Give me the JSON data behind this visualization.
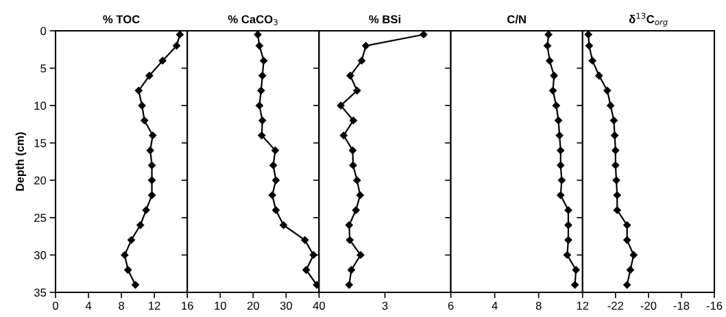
{
  "chart_data": [
    {
      "type": "line",
      "title": "% TOC",
      "ylabel": "Depth (cm)",
      "xlim": [
        0,
        16
      ],
      "xticks": [
        0,
        4,
        8,
        12,
        16
      ],
      "ylim": [
        35,
        0
      ],
      "yticks": [
        0,
        5,
        10,
        15,
        20,
        25,
        30,
        35
      ],
      "marker": "diamond",
      "line_style": "solid",
      "grid": false,
      "legend": false,
      "series": [
        {
          "color": "#000000",
          "x": [
            15.1,
            14.7,
            13.0,
            11.4,
            10.1,
            10.5,
            10.8,
            11.8,
            11.5,
            11.7,
            11.7,
            11.7,
            11.0,
            10.3,
            9.2,
            8.4,
            8.8,
            9.7
          ],
          "values": [
            0.5,
            2,
            4,
            6,
            8,
            10,
            12,
            14,
            16,
            18,
            20,
            22,
            24,
            26,
            28,
            30,
            32,
            34
          ]
        }
      ]
    },
    {
      "type": "line",
      "title": "% CaCO$_{3}$",
      "xlim": [
        0,
        40
      ],
      "xticks": [
        10,
        20,
        30,
        40
      ],
      "ylim": [
        35,
        0
      ],
      "yticks": [
        0,
        5,
        10,
        15,
        20,
        25,
        30,
        35
      ],
      "tick_labels": "x",
      "marker": "diamond",
      "line_style": "solid",
      "grid": false,
      "legend": false,
      "series": [
        {
          "color": "#000000",
          "x": [
            21.4,
            21.9,
            23.2,
            22.8,
            22.4,
            21.9,
            22.8,
            22.6,
            26.7,
            26.1,
            26.9,
            25.8,
            26.9,
            29.2,
            35.7,
            38.3,
            36.1,
            39.3
          ],
          "values": [
            0.5,
            2,
            4,
            6,
            8,
            10,
            12,
            14,
            16,
            18,
            20,
            22,
            24,
            26,
            28,
            30,
            32,
            34
          ]
        }
      ]
    },
    {
      "type": "line",
      "title": "% BSi",
      "xlim": [
        0,
        6
      ],
      "xticks": [
        3,
        6
      ],
      "ylim": [
        35,
        0
      ],
      "yticks": [
        0,
        5,
        10,
        15,
        20,
        25,
        30,
        35
      ],
      "tick_labels": "x",
      "marker": "diamond",
      "line_style": "solid",
      "grid": false,
      "legend": false,
      "series": [
        {
          "color": "#000000",
          "x": [
            4.76,
            2.13,
            1.94,
            1.42,
            1.73,
            0.99,
            1.56,
            1.12,
            1.53,
            1.55,
            1.73,
            1.87,
            1.68,
            1.37,
            1.4,
            1.89,
            1.47,
            1.37
          ],
          "values": [
            0.5,
            2,
            4,
            6,
            8,
            10,
            12,
            14,
            16,
            18,
            20,
            22,
            24,
            26,
            28,
            30,
            32,
            34
          ]
        }
      ]
    },
    {
      "type": "line",
      "title": "C/N",
      "xlim": [
        0,
        12
      ],
      "xticks": [
        4,
        8,
        12
      ],
      "ylim": [
        35,
        0
      ],
      "yticks": [
        0,
        5,
        10,
        15,
        20,
        25,
        30,
        35
      ],
      "tick_labels": "x",
      "marker": "diamond",
      "line_style": "solid",
      "grid": false,
      "legend": false,
      "series": [
        {
          "color": "#000000",
          "x": [
            8.9,
            8.8,
            9.0,
            9.4,
            9.3,
            9.6,
            9.8,
            9.9,
            10.0,
            10.0,
            10.1,
            10.0,
            10.7,
            10.7,
            10.7,
            10.6,
            11.4,
            11.3
          ],
          "values": [
            0.5,
            2,
            4,
            6,
            8,
            10,
            12,
            14,
            16,
            18,
            20,
            22,
            24,
            26,
            28,
            30,
            32,
            34
          ]
        }
      ]
    },
    {
      "type": "line",
      "title": "δ$^{13}$C$_{org}$",
      "xlim": [
        -24,
        -16
      ],
      "xticks": [
        -22,
        -20,
        -18,
        -16
      ],
      "ylim": [
        35,
        0
      ],
      "yticks": [
        0,
        5,
        10,
        15,
        20,
        25,
        30,
        35
      ],
      "tick_labels": "x",
      "marker": "diamond",
      "line_style": "solid",
      "grid": false,
      "legend": false,
      "series": [
        {
          "color": "#000000",
          "x": [
            -23.65,
            -23.6,
            -23.4,
            -23.0,
            -22.5,
            -22.3,
            -22.1,
            -22.05,
            -22.0,
            -22.0,
            -21.95,
            -21.9,
            -21.9,
            -21.3,
            -21.3,
            -20.9,
            -21.1,
            -21.3
          ],
          "values": [
            0.5,
            2,
            4,
            6,
            8,
            10,
            12,
            14,
            16,
            18,
            20,
            22,
            24,
            26,
            28,
            30,
            32,
            34
          ]
        }
      ]
    }
  ]
}
